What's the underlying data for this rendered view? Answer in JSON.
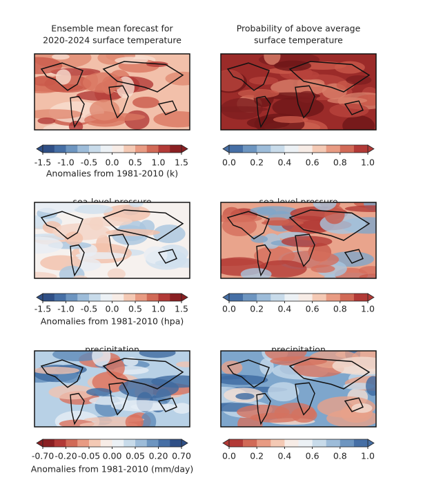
{
  "panels": [
    {
      "title": [
        "Ensemble mean forecast for",
        "2020-2024 surface temperature"
      ],
      "colorbar": {
        "ticks": [
          "-1.5",
          "-1.0",
          "-0.5",
          "0.0",
          "0.5",
          "1.0",
          "1.5"
        ],
        "label": "Anomalies from 1981-2010 (k)"
      }
    },
    {
      "title": [
        "Probability of above average",
        "surface temperature"
      ],
      "colorbar": {
        "ticks": [
          "0.0",
          "0.2",
          "0.4",
          "0.6",
          "0.8",
          "1.0"
        ]
      }
    },
    {
      "title": [
        "sea-level pressure"
      ],
      "colorbar": {
        "ticks": [
          "-1.5",
          "-1.0",
          "-0.5",
          "0.0",
          "0.5",
          "1.0",
          "1.5"
        ],
        "label": "Anomalies from 1981-2010 (hpa)"
      }
    },
    {
      "title": [
        "sea-level pressure"
      ],
      "colorbar": {
        "ticks": [
          "0.0",
          "0.2",
          "0.4",
          "0.6",
          "0.8",
          "1.0"
        ]
      }
    },
    {
      "title": [
        "precipitation"
      ],
      "colorbar": {
        "ticks": [
          "-0.70",
          "-0.20",
          "-0.05",
          "0.00",
          "0.05",
          "0.20",
          "0.70"
        ],
        "label": "Anomalies from 1981-2010 (mm/day)"
      }
    },
    {
      "title": [
        "precipitation"
      ],
      "colorbar": {
        "ticks": [
          "0.0",
          "0.2",
          "0.4",
          "0.6",
          "0.8",
          "1.0"
        ]
      }
    }
  ]
}
